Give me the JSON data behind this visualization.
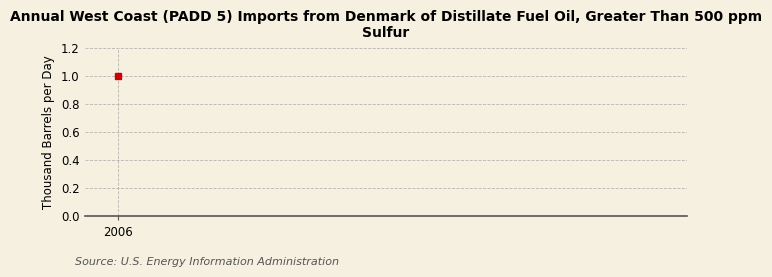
{
  "title": "Annual West Coast (PADD 5) Imports from Denmark of Distillate Fuel Oil, Greater Than 500 ppm\nSulfur",
  "xlabel": "",
  "ylabel": "Thousand Barrels per Day",
  "background_color": "#f5f0e0",
  "plot_bg_color": "#f5f0e0",
  "data_x": [
    2006
  ],
  "data_y": [
    1.0
  ],
  "marker_color": "#cc0000",
  "xlim": [
    2005.5,
    2014.5
  ],
  "ylim": [
    0.0,
    1.2
  ],
  "yticks": [
    0.0,
    0.2,
    0.4,
    0.6,
    0.8,
    1.0,
    1.2
  ],
  "xticks": [
    2006
  ],
  "grid_color": "#aaaaaa",
  "source_text": "Source: U.S. Energy Information Administration",
  "title_fontsize": 10,
  "ylabel_fontsize": 8.5,
  "source_fontsize": 8,
  "tick_fontsize": 8.5
}
